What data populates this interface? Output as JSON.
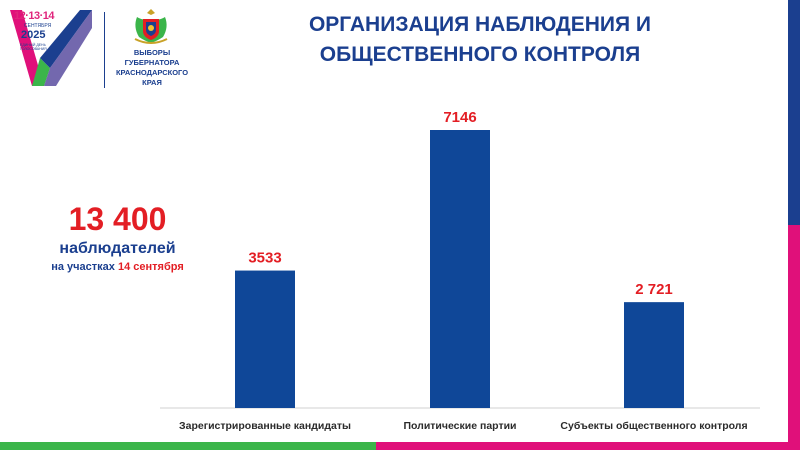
{
  "header": {
    "title_line1": "ОРГАНИЗАЦИЯ НАБЛЮДЕНИЯ И",
    "title_line2": "ОБЩЕСТВЕННОГО КОНТРОЛЯ"
  },
  "logo": {
    "dates": "12·13·14",
    "month": "СЕНТЯБРЯ",
    "year": "2025",
    "small_text": "ЕДИНЫЙ ДЕНЬ ГОЛОСОВАНИЯ",
    "elections_label": "ВЫБОРЫ ГУБЕРНАТОРА КРАСНОДАРСКОГО КРАЯ"
  },
  "summary": {
    "total_value": "13 400",
    "total_label": "наблюдателей",
    "sub_prefix": "на участках",
    "sub_highlight": "14 сентября"
  },
  "colors": {
    "brand_blue": "#1b3f8f",
    "bar_blue": "#0f4798",
    "accent_red": "#e31e24",
    "accent_pink": "#e0107a",
    "accent_green": "#3bb54a"
  },
  "chart_data": {
    "type": "bar",
    "categories": [
      "Зарегистрированные кандидаты",
      "Политические партии",
      "Субъекты общественного контроля"
    ],
    "values": [
      3533,
      7146,
      2721
    ],
    "value_labels": [
      "3533",
      "7146",
      "2 721"
    ],
    "ylim": [
      0,
      7146
    ],
    "grid": false,
    "legend": "none"
  }
}
